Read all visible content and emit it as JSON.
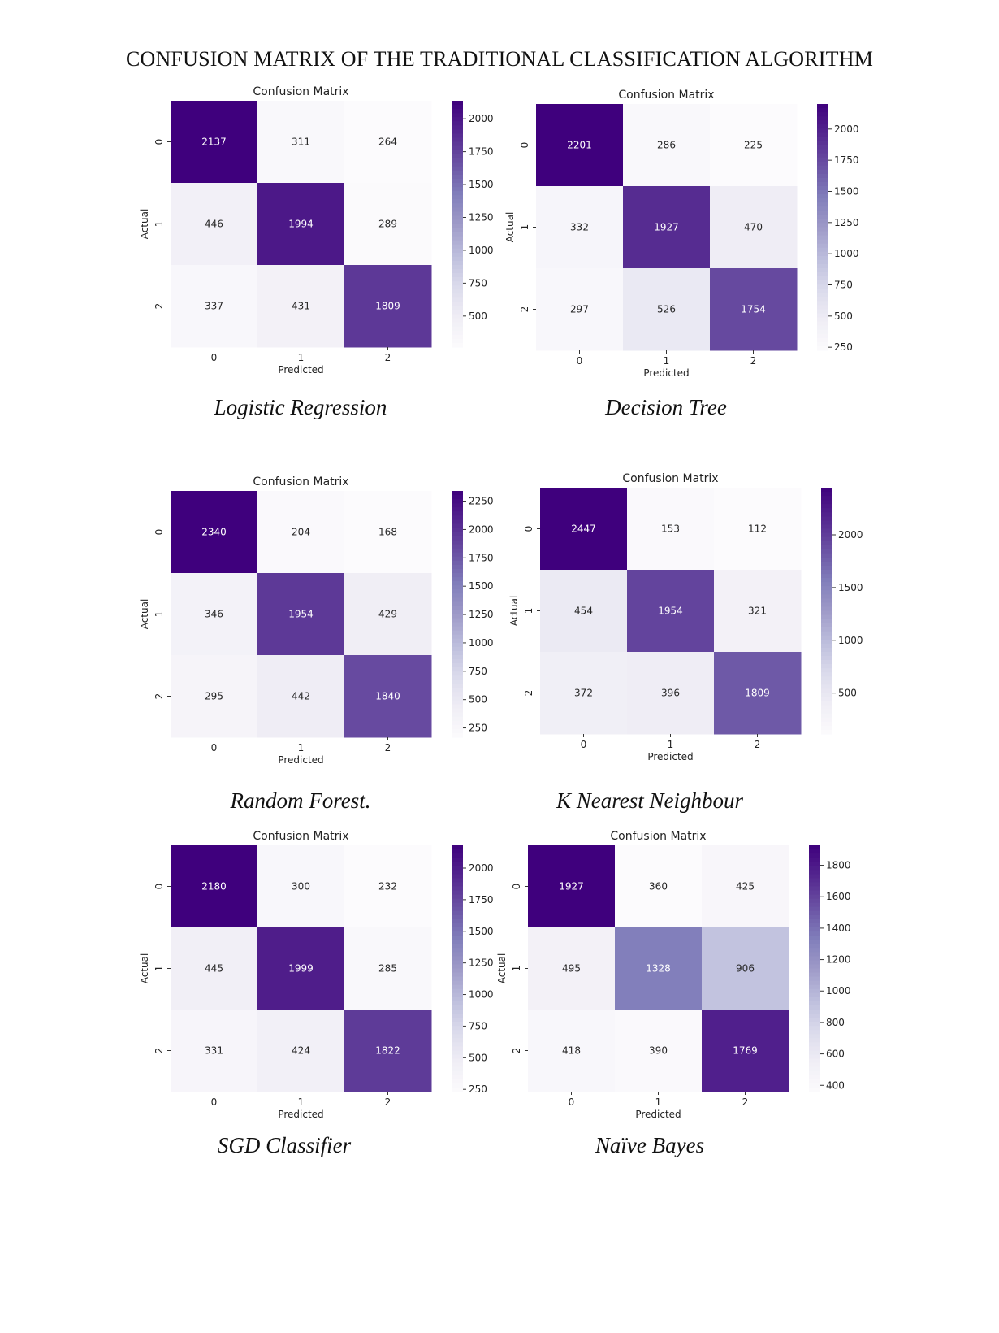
{
  "page": {
    "title": "CONFUSION MATRIX OF THE TRADITIONAL CLASSIFICATION ALGORITHM"
  },
  "colors": {
    "low": "#fcfbfd",
    "high": "#3f007d",
    "colormap": "Purples"
  },
  "chart_data": [
    {
      "type": "heatmap",
      "caption": "Logistic Regression",
      "title": "Confusion Matrix",
      "xlabel": "Predicted",
      "ylabel": "Actual",
      "x_categories": [
        "0",
        "1",
        "2"
      ],
      "y_categories": [
        "0",
        "1",
        "2"
      ],
      "values": [
        [
          2137,
          311,
          264
        ],
        [
          446,
          1994,
          289
        ],
        [
          337,
          431,
          1809
        ]
      ],
      "colorbar": {
        "ticks": [
          500,
          750,
          1000,
          1250,
          1500,
          1750,
          2000
        ],
        "range": [
          264,
          2137
        ]
      }
    },
    {
      "type": "heatmap",
      "caption": "Decision Tree",
      "title": "Confusion Matrix",
      "xlabel": "Predicted",
      "ylabel": "Actual",
      "x_categories": [
        "0",
        "1",
        "2"
      ],
      "y_categories": [
        "0",
        "1",
        "2"
      ],
      "values": [
        [
          2201,
          286,
          225
        ],
        [
          332,
          1927,
          470
        ],
        [
          297,
          526,
          1754
        ]
      ],
      "colorbar": {
        "ticks": [
          250,
          500,
          750,
          1000,
          1250,
          1500,
          1750,
          2000
        ],
        "range": [
          225,
          2201
        ]
      }
    },
    {
      "type": "heatmap",
      "caption": "Random Forest.",
      "title": "Confusion Matrix",
      "xlabel": "Predicted",
      "ylabel": "Actual",
      "x_categories": [
        "0",
        "1",
        "2"
      ],
      "y_categories": [
        "0",
        "1",
        "2"
      ],
      "values": [
        [
          2340,
          204,
          168
        ],
        [
          346,
          1954,
          429
        ],
        [
          295,
          442,
          1840
        ]
      ],
      "colorbar": {
        "ticks": [
          250,
          500,
          750,
          1000,
          1250,
          1500,
          1750,
          2000,
          2250
        ],
        "range": [
          168,
          2340
        ]
      }
    },
    {
      "type": "heatmap",
      "caption": "K Nearest Neighbour",
      "title": "Confusion Matrix",
      "xlabel": "Predicted",
      "ylabel": "Actual",
      "x_categories": [
        "0",
        "1",
        "2"
      ],
      "y_categories": [
        "0",
        "1",
        "2"
      ],
      "values": [
        [
          2447,
          153,
          112
        ],
        [
          454,
          1954,
          321
        ],
        [
          372,
          396,
          1809
        ]
      ],
      "colorbar": {
        "ticks": [
          500,
          1000,
          1500,
          2000
        ],
        "range": [
          112,
          2447
        ]
      }
    },
    {
      "type": "heatmap",
      "caption": "SGD Classifier",
      "title": "Confusion Matrix",
      "xlabel": "Predicted",
      "ylabel": "Actual",
      "x_categories": [
        "0",
        "1",
        "2"
      ],
      "y_categories": [
        "0",
        "1",
        "2"
      ],
      "values": [
        [
          2180,
          300,
          232
        ],
        [
          445,
          1999,
          285
        ],
        [
          331,
          424,
          1822
        ]
      ],
      "colorbar": {
        "ticks": [
          250,
          500,
          750,
          1000,
          1250,
          1500,
          1750,
          2000
        ],
        "range": [
          232,
          2180
        ]
      }
    },
    {
      "type": "heatmap",
      "caption": "Naïve Bayes",
      "title": "Confusion Matrix",
      "xlabel": "Predicted",
      "ylabel": "Actual",
      "x_categories": [
        "0",
        "1",
        "2"
      ],
      "y_categories": [
        "0",
        "1",
        "2"
      ],
      "values": [
        [
          1927,
          360,
          425
        ],
        [
          495,
          1328,
          906
        ],
        [
          418,
          390,
          1769
        ]
      ],
      "colorbar": {
        "ticks": [
          400,
          600,
          800,
          1000,
          1200,
          1400,
          1600,
          1800
        ],
        "range": [
          360,
          1927
        ]
      }
    }
  ]
}
